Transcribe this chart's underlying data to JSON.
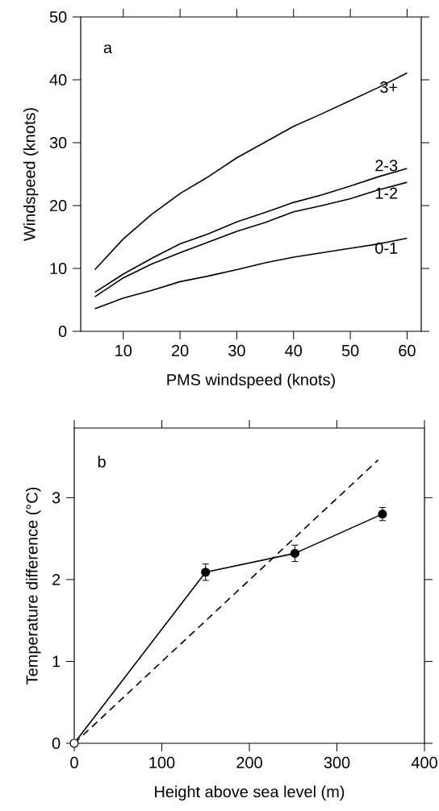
{
  "chart_data": [
    {
      "type": "line",
      "xlabel": "PMS windspeed (knots)",
      "ylabel": "Windspeed (knots)",
      "annotations": [
        "a"
      ],
      "x": [
        5,
        10,
        15,
        20,
        25,
        30,
        35,
        40,
        45,
        50,
        55,
        60
      ],
      "xlim": [
        2.5,
        62.5
      ],
      "ylim": [
        0,
        50
      ],
      "xticks": [
        10,
        20,
        30,
        40,
        50,
        60
      ],
      "yticks": [
        0,
        10,
        20,
        30,
        40,
        50
      ],
      "series": [
        {
          "name": "0-1",
          "color": "#000000",
          "values": [
            3.6,
            5.3,
            6.5,
            7.9,
            8.8,
            9.8,
            10.9,
            11.8,
            12.5,
            13.2,
            13.9,
            14.8
          ]
        },
        {
          "name": "1-2",
          "color": "#000000",
          "values": [
            5.5,
            8.5,
            10.7,
            12.5,
            14.2,
            15.9,
            17.3,
            19.0,
            20.0,
            21.1,
            22.5,
            23.7
          ]
        },
        {
          "name": "2-3",
          "color": "#000000",
          "values": [
            6.2,
            9.1,
            11.6,
            13.9,
            15.5,
            17.4,
            18.9,
            20.5,
            21.7,
            23.1,
            24.6,
            25.9
          ]
        },
        {
          "name": "3+",
          "color": "#000000",
          "values": [
            9.8,
            14.7,
            18.6,
            21.9,
            24.6,
            27.6,
            30.1,
            32.6,
            34.6,
            36.7,
            38.8,
            41.1
          ]
        }
      ]
    },
    {
      "type": "line",
      "xlabel": "Height above sea level (m)",
      "ylabel": "Temperature difference (°C)",
      "annotations": [
        "b"
      ],
      "xlim": [
        0,
        400
      ],
      "ylim": [
        0,
        3.85
      ],
      "xticks": [
        0,
        100,
        200,
        300,
        400
      ],
      "yticks": [
        0,
        1,
        2,
        3
      ],
      "series": [
        {
          "color": "#000000",
          "x": [
            0,
            150,
            252,
            352
          ],
          "values": [
            0,
            2.09,
            2.32,
            2.8
          ],
          "errors": [
            null,
            0.1,
            0.1,
            0.08
          ],
          "marker": "circle",
          "line_style": "solid",
          "colors": [
            "#ffffff",
            "#000000",
            "#000000",
            "#000000"
          ]
        },
        {
          "color": "#000000",
          "x": [
            0,
            347
          ],
          "values": [
            0,
            3.46
          ],
          "line_style": "dashed"
        }
      ]
    }
  ]
}
